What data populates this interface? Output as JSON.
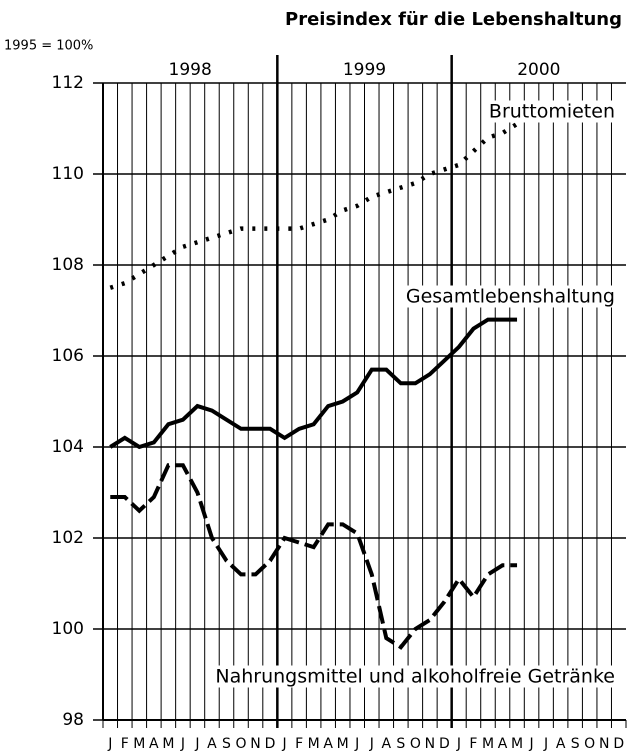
{
  "chart_data": {
    "type": "line",
    "title": "Preisindex für die Lebenshaltung",
    "y_label": "1995 = 100%",
    "years": [
      "1998",
      "1999",
      "2000"
    ],
    "categories": [
      "J",
      "F",
      "M",
      "A",
      "M",
      "J",
      "J",
      "A",
      "S",
      "O",
      "N",
      "D",
      "J",
      "F",
      "M",
      "A",
      "M",
      "J",
      "J",
      "A",
      "S",
      "O",
      "N",
      "D",
      "J",
      "F",
      "M",
      "A",
      "M",
      "J",
      "J",
      "A",
      "S",
      "O",
      "N",
      "D"
    ],
    "ylim": [
      98,
      112
    ],
    "yticks": [
      98,
      100,
      102,
      104,
      106,
      108,
      110,
      112
    ],
    "grid": true,
    "series": [
      {
        "name": "Bruttomieten",
        "color": "#000000",
        "style": "dotted",
        "values": [
          107.5,
          107.6,
          107.8,
          108.0,
          108.2,
          108.4,
          108.5,
          108.6,
          108.7,
          108.8,
          108.8,
          108.8,
          108.8,
          108.8,
          108.9,
          109.0,
          109.2,
          109.3,
          109.5,
          109.6,
          109.7,
          109.8,
          110.0,
          110.1,
          110.2,
          110.5,
          110.8,
          110.9,
          111.1,
          null,
          null,
          null,
          null,
          null,
          null,
          null
        ]
      },
      {
        "name": "Gesamtlebenshaltung",
        "color": "#000000",
        "style": "solid",
        "values": [
          104.0,
          104.2,
          104.0,
          104.1,
          104.5,
          104.6,
          104.9,
          104.8,
          104.6,
          104.4,
          104.4,
          104.4,
          104.2,
          104.4,
          104.5,
          104.9,
          105.0,
          105.2,
          105.7,
          105.7,
          105.4,
          105.4,
          105.6,
          105.9,
          106.2,
          106.6,
          106.8,
          106.8,
          106.8,
          null,
          null,
          null,
          null,
          null,
          null,
          null
        ]
      },
      {
        "name": "Nahrungsmittel und alkoholfreie Getränke",
        "color": "#000000",
        "style": "dashed",
        "values": [
          102.9,
          102.9,
          102.6,
          102.9,
          103.6,
          103.6,
          103.0,
          102.0,
          101.5,
          101.2,
          101.2,
          101.5,
          102.0,
          101.9,
          101.8,
          102.3,
          102.3,
          102.1,
          101.2,
          99.8,
          99.6,
          100.0,
          100.2,
          100.6,
          101.1,
          100.7,
          101.2,
          101.4,
          101.4,
          null,
          null,
          null,
          null,
          null,
          null,
          null
        ]
      }
    ]
  }
}
